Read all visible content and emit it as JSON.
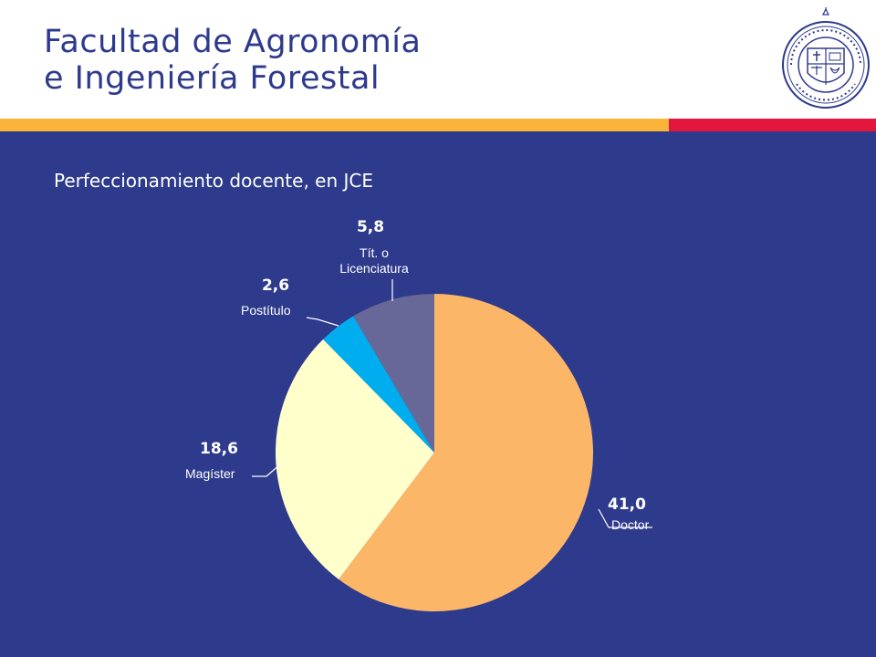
{
  "header": {
    "title_line1": "Facultad de Agronomía",
    "title_line2": "e Ingeniería Forestal",
    "seal_icon": "university-seal-icon"
  },
  "colors": {
    "title": "#2e3a8c",
    "background": "#2e3a8c",
    "stripe_yellow": "#fbb43a",
    "stripe_red": "#e3173e"
  },
  "chart_data": {
    "type": "pie",
    "title": "Perfeccionamiento docente, en JCE",
    "start": "12 o'clock",
    "direction": "clockwise",
    "slices": [
      {
        "category": "Doctor",
        "value": 41.0,
        "value_label": "41,0",
        "color": "#fcb668"
      },
      {
        "category": "Magíster",
        "value": 18.6,
        "value_label": "18,6",
        "color": "#ffffcc"
      },
      {
        "category": "Postítulo",
        "value": 2.6,
        "value_label": "2,6",
        "color": "#00aeef"
      },
      {
        "category": "Tít. o Licenciatura",
        "category_lines": [
          "Tít. o",
          "Licenciatura"
        ],
        "value": 5.8,
        "value_label": "5,8",
        "color": "#676897"
      }
    ]
  }
}
